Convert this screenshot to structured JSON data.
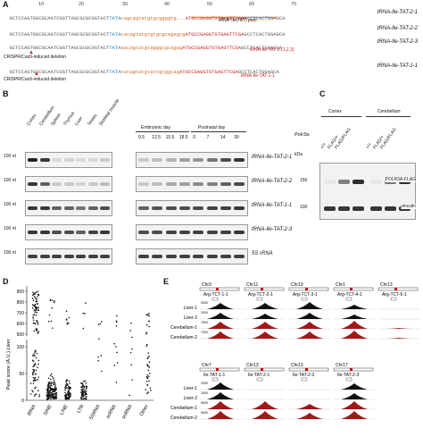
{
  "panelA": {
    "letter": "A",
    "ruler": [
      "1",
      "10",
      "20",
      "30",
      "40",
      "50",
      "60",
      "70"
    ],
    "rows": [
      {
        "seq_a": "GCTCCAGTGGCGCAATCGGTTAGCGCGCGGTACT",
        "seq_b": "TATA",
        "seq_c": "cagcagtatgtgcggggtg...",
        "seq_d": "ATGCCGAGGTGTGAGTTCGA",
        "seq_e": "GCCTCACTGGAGCA",
        "name": "tRNA-Ile-TAT-2-1"
      },
      {
        "seq_a": "GCTCCAGTGGCGCAATCGGTTAGCGCGCGGTACT",
        "seq_b": "TATA",
        "seq_c": "cacagtatgtgtgcgcagagcg",
        "seq_d": "ATGCCGAGGTGTGAGTTCGA",
        "seq_e": "GCCTCACTGGAGCA",
        "name": "tRNA-Ile-TAT-2-2"
      },
      {
        "seq_a": "GCTCCAGTGGCGCAATCGGTTAGCGCGCGGTACT",
        "seq_b": "TATA",
        "seq_c": "aacagcatgtagggcgcagag",
        "seq_d": "ATGCCGAGGTGTGAGTTCGA",
        "seq_e": "GCCTCACTGGAGCA",
        "name": "tRNA-Ile-TAT-2-3"
      },
      {
        "seq_a": "GCTCCAGTGGCGCAATCGGTTAGCGCGCGGTACT",
        "seq_b": "TATA",
        "seq_c": "cacagcatgtatcgcggcag",
        "seq_d": "ATGCCGAGGTGTGAGTTCGA",
        "seq_e": "GCCTCACTGGAGCA",
        "name": "tRNA-Ile-TAT-1-1"
      }
    ],
    "pool_label": "tRNA^Ile(TAT) pool",
    "probe_label": "tRNA-Ile-TAT-2-(1,2,3)",
    "probe_label2": "tRNA-Ile-TAT-1-1",
    "crispr_label": "CRISPR/Cas9-induced deletion"
  },
  "panelB": {
    "letter": "B",
    "tissues": [
      "Cortex",
      "Cerebellum",
      "Spleen",
      "Thymus",
      "Liver",
      "Testes",
      "Skeletal muscle"
    ],
    "embryonic_label": "Embryonic day",
    "postnatal_label": "Postnatal day",
    "embryonic_days": [
      "9.5",
      "12.5",
      "15.5",
      "18.5"
    ],
    "postnatal_days": [
      "0",
      "7",
      "14",
      "30"
    ],
    "size_label": "100 nt",
    "rows": [
      "tRNA-Ile-TAT-2-1",
      "tRNA-Ile-TAT-2-2",
      "tRNA-Ile-TAT-1-1",
      "tRNA-Ile-TAT-2-3",
      "5S rRNA"
    ]
  },
  "panelC": {
    "letter": "C",
    "groups": [
      "Cortex",
      "Cerebellum"
    ],
    "allele_label": "Polr3a:",
    "genotypes": [
      "+/+",
      "FLAG/+",
      "FLAG/FLAG",
      "+/+",
      "FLAG/+",
      "FLAG/FLAG"
    ],
    "kda_label": "kDa",
    "markers": [
      "150",
      "100"
    ],
    "rows": [
      "POLR3A-FLAG",
      "vinculin"
    ]
  },
  "panelD": {
    "letter": "D",
    "ylabel": "Peak score (A.U.) Liver",
    "categories": [
      "tRNA",
      "SINE",
      "LINE",
      "LTR",
      "5SRNA",
      "scRNA",
      "snRNA",
      "Other"
    ],
    "yticks_top": [
      "900",
      "800",
      "700",
      "600",
      "500"
    ],
    "yticks_bottom": [
      "100",
      "50",
      "0"
    ]
  },
  "panelE": {
    "letter": "E",
    "top_chrs": [
      "Chr3",
      "Chr11",
      "Chr19",
      "Chr1",
      "Chr13"
    ],
    "top_genes": [
      "Arg-TCT-1-1",
      "Arg-TCT-2-1",
      "Arg-TCT-3-1",
      "Arg-TCT-4-1",
      "Arg-TCT-5-1"
    ],
    "bottom_chrs": [
      "Chr7",
      "Chr13",
      "Chr13",
      "Chr17"
    ],
    "bottom_genes": [
      "Ile-TAT-1-1",
      "Ile-TAT-2-1",
      "Ile-TAT-2-2",
      "Ile-TAT-2-3"
    ],
    "samples": [
      "Liver-1",
      "Liver-2",
      "Cerebellum-1",
      "Cerebellum-2"
    ],
    "scale_top": [
      "2000",
      "2000",
      "7000",
      "7000"
    ],
    "scale_bottom": [
      "2000",
      "2000",
      "5000",
      "5000"
    ],
    "colors": {
      "liver": "#111111",
      "cerebellum": "#a01818"
    }
  }
}
